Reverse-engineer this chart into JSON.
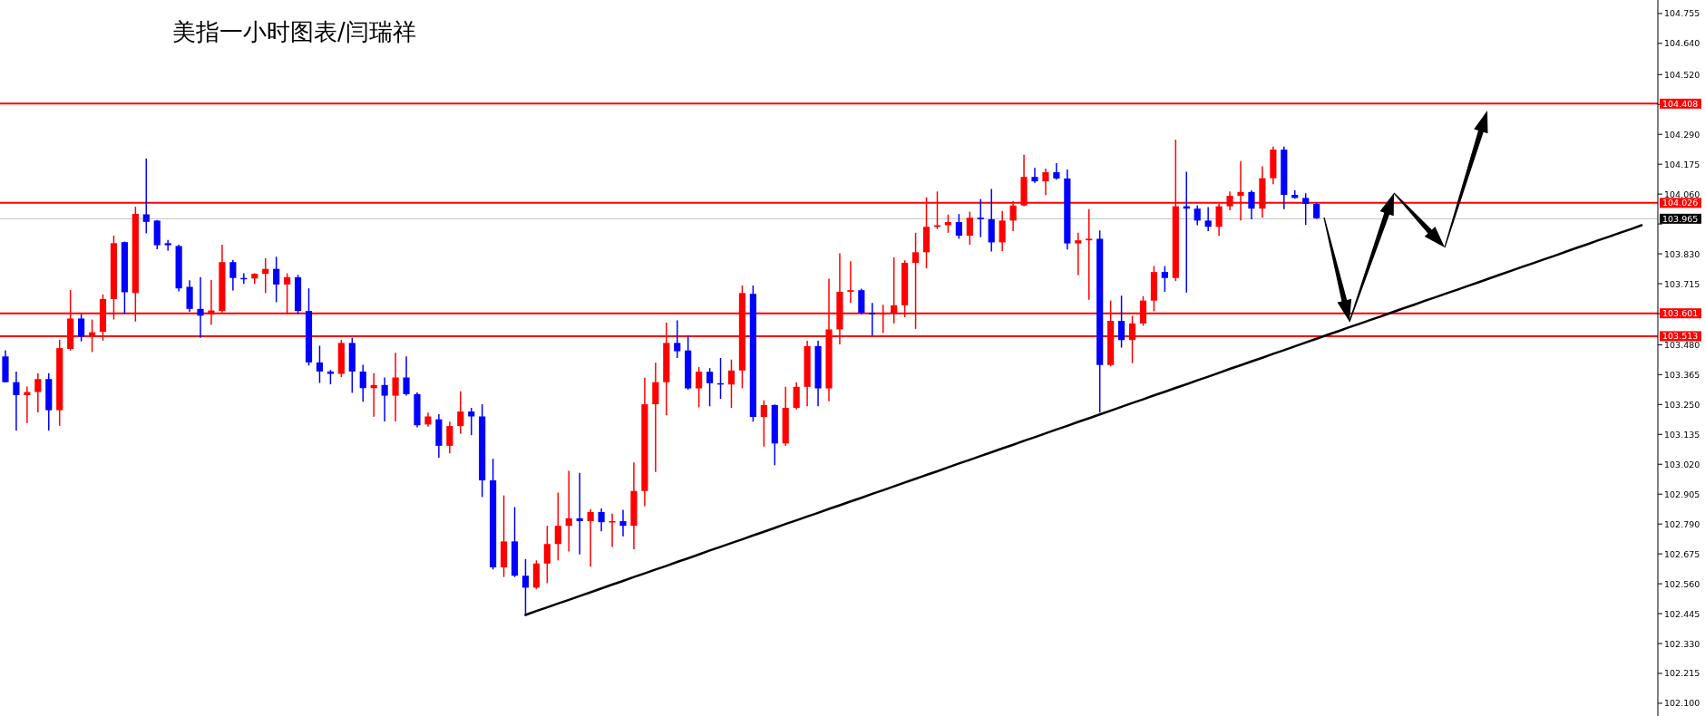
{
  "chart_data": {
    "type": "candlestick",
    "title": "美指一小时图表/闫瑞祥",
    "categories": [
      null,
      null,
      null,
      null,
      null,
      null,
      null,
      null,
      null,
      null,
      null,
      null,
      null,
      null,
      null,
      null,
      null,
      null,
      null,
      null,
      null,
      null,
      null,
      null,
      null,
      null,
      null,
      null,
      null,
      null,
      null,
      null,
      null,
      null,
      null,
      null,
      null,
      null,
      null,
      null,
      null,
      null,
      null,
      null,
      null,
      null,
      null,
      null,
      null,
      null,
      null,
      null,
      null,
      null,
      null,
      null,
      null,
      null,
      null,
      null,
      null,
      null,
      null,
      null,
      null,
      null,
      null,
      null,
      null,
      null,
      null,
      null,
      null,
      null,
      null,
      null,
      null,
      null,
      null,
      null,
      null,
      null,
      null,
      null,
      null,
      null,
      null,
      null,
      null,
      null,
      null,
      null,
      null,
      null,
      null,
      null,
      null,
      null,
      null,
      null,
      null,
      null,
      null,
      null,
      null,
      null,
      null,
      null,
      null,
      null,
      null,
      null,
      null,
      null,
      null,
      null,
      null,
      null,
      null,
      null,
      null,
      null,
      null,
      null,
      null,
      null,
      null,
      null,
      null,
      null,
      null,
      null,
      null,
      null,
      null,
      null,
      null,
      null,
      null,
      null,
      null,
      null,
      null,
      null,
      null,
      null,
      null,
      null,
      null,
      null,
      null,
      null,
      null
    ],
    "ohlc": [
      [
        103.435,
        103.459,
        103.336,
        103.336
      ],
      [
        103.336,
        103.377,
        103.15,
        103.286
      ],
      [
        103.286,
        103.319,
        103.179,
        103.298
      ],
      [
        103.298,
        103.371,
        103.22,
        103.348
      ],
      [
        103.348,
        103.371,
        103.15,
        103.228
      ],
      [
        103.228,
        103.499,
        103.168,
        103.467
      ],
      [
        103.464,
        103.691,
        103.458,
        103.581
      ],
      [
        103.581,
        103.598,
        103.493,
        103.511
      ],
      [
        103.511,
        103.577,
        103.452,
        103.528
      ],
      [
        103.53,
        103.674,
        103.496,
        103.656
      ],
      [
        103.656,
        103.9,
        103.577,
        103.871
      ],
      [
        103.875,
        103.877,
        103.598,
        103.682
      ],
      [
        103.679,
        104.011,
        103.569,
        103.984
      ],
      [
        103.982,
        104.197,
        103.909,
        103.953
      ],
      [
        103.958,
        103.96,
        103.848,
        103.863
      ],
      [
        103.871,
        103.883,
        103.842,
        103.863
      ],
      [
        103.86,
        103.865,
        103.685,
        103.697
      ],
      [
        103.703,
        103.728,
        103.607,
        103.618
      ],
      [
        103.618,
        103.74,
        103.507,
        103.592
      ],
      [
        103.598,
        103.729,
        103.557,
        103.612
      ],
      [
        103.61,
        103.865,
        103.604,
        103.798
      ],
      [
        103.798,
        103.807,
        103.689,
        103.737
      ],
      [
        103.737,
        103.755,
        103.714,
        103.735
      ],
      [
        103.735,
        103.755,
        103.714,
        103.753
      ],
      [
        103.753,
        103.813,
        103.679,
        103.772
      ],
      [
        103.772,
        103.819,
        103.644,
        103.712
      ],
      [
        103.712,
        103.755,
        103.598,
        103.74
      ],
      [
        103.74,
        103.749,
        103.598,
        103.61
      ],
      [
        103.61,
        103.697,
        103.4,
        103.412
      ],
      [
        103.412,
        103.476,
        103.333,
        103.377
      ],
      [
        103.377,
        103.383,
        103.328,
        103.368
      ],
      [
        103.368,
        103.499,
        103.356,
        103.487
      ],
      [
        103.487,
        103.507,
        103.295,
        103.377
      ],
      [
        103.377,
        103.403,
        103.261,
        103.313
      ],
      [
        103.313,
        103.371,
        103.203,
        103.325
      ],
      [
        103.325,
        103.354,
        103.185,
        103.284
      ],
      [
        103.284,
        103.449,
        103.185,
        103.354
      ],
      [
        103.354,
        103.435,
        103.284,
        103.29
      ],
      [
        103.29,
        103.296,
        103.162,
        103.17
      ],
      [
        103.173,
        103.219,
        103.165,
        103.204
      ],
      [
        103.193,
        103.213,
        103.045,
        103.091
      ],
      [
        103.091,
        103.184,
        103.062,
        103.167
      ],
      [
        103.167,
        103.301,
        103.138,
        103.223
      ],
      [
        103.223,
        103.237,
        103.132,
        103.204
      ],
      [
        103.204,
        103.251,
        102.894,
        102.958
      ],
      [
        102.958,
        103.041,
        102.615,
        102.623
      ],
      [
        102.623,
        102.9,
        102.586,
        102.723
      ],
      [
        102.723,
        102.855,
        102.586,
        102.591
      ],
      [
        102.591,
        102.655,
        102.44,
        102.545
      ],
      [
        102.545,
        102.65,
        102.54,
        102.638
      ],
      [
        102.638,
        102.783,
        102.562,
        102.713
      ],
      [
        102.713,
        102.911,
        102.65,
        102.783
      ],
      [
        102.783,
        102.995,
        102.684,
        102.812
      ],
      [
        102.812,
        102.987,
        102.673,
        102.801
      ],
      [
        102.801,
        102.847,
        102.626,
        102.836
      ],
      [
        102.836,
        102.85,
        102.762,
        102.797
      ],
      [
        102.797,
        102.83,
        102.702,
        102.801
      ],
      [
        102.801,
        102.845,
        102.743,
        102.783
      ],
      [
        102.783,
        103.027,
        102.693,
        102.917
      ],
      [
        102.917,
        103.353,
        102.859,
        103.251
      ],
      [
        103.251,
        103.411,
        102.99,
        103.336
      ],
      [
        103.336,
        103.565,
        103.208,
        103.487
      ],
      [
        103.487,
        103.574,
        103.429,
        103.455
      ],
      [
        103.458,
        103.516,
        103.307,
        103.312
      ],
      [
        103.312,
        103.394,
        103.239,
        103.376
      ],
      [
        103.376,
        103.39,
        103.243,
        103.332
      ],
      [
        103.332,
        103.429,
        103.272,
        103.327
      ],
      [
        103.327,
        103.423,
        103.237,
        103.381
      ],
      [
        103.381,
        103.708,
        103.312,
        103.679
      ],
      [
        103.676,
        103.708,
        103.184,
        103.202
      ],
      [
        103.202,
        103.266,
        103.088,
        103.248
      ],
      [
        103.248,
        103.25,
        103.016,
        103.1
      ],
      [
        103.1,
        103.318,
        103.091,
        103.237
      ],
      [
        103.237,
        103.336,
        103.231,
        103.318
      ],
      [
        103.318,
        103.495,
        103.243,
        103.475
      ],
      [
        103.475,
        103.495,
        103.243,
        103.312
      ],
      [
        103.312,
        103.734,
        103.262,
        103.539
      ],
      [
        103.539,
        103.832,
        103.481,
        103.684
      ],
      [
        103.684,
        103.801,
        103.641,
        103.69
      ],
      [
        103.69,
        103.696,
        103.597,
        103.603
      ],
      [
        103.603,
        103.641,
        103.516,
        103.597
      ],
      [
        103.597,
        103.634,
        103.525,
        103.603
      ],
      [
        103.603,
        103.816,
        103.562,
        103.632
      ],
      [
        103.632,
        103.805,
        103.586,
        103.795
      ],
      [
        103.795,
        103.911,
        103.541,
        103.836
      ],
      [
        103.836,
        104.048,
        103.774,
        103.934
      ],
      [
        103.934,
        104.07,
        103.925,
        103.94
      ],
      [
        103.94,
        103.981,
        103.911,
        103.952
      ],
      [
        103.952,
        103.983,
        103.888,
        103.9
      ],
      [
        103.9,
        103.992,
        103.865,
        103.969
      ],
      [
        103.969,
        104.041,
        103.894,
        103.963
      ],
      [
        103.963,
        104.08,
        103.839,
        103.874
      ],
      [
        103.874,
        103.995,
        103.841,
        103.958
      ],
      [
        103.958,
        104.033,
        103.917,
        104.016
      ],
      [
        104.016,
        104.211,
        104.013,
        104.126
      ],
      [
        104.126,
        104.161,
        104.103,
        104.109
      ],
      [
        104.109,
        104.158,
        104.056,
        104.144
      ],
      [
        104.144,
        104.179,
        104.115,
        104.12
      ],
      [
        104.12,
        104.155,
        103.847,
        103.87
      ],
      [
        103.87,
        103.911,
        103.748,
        103.882
      ],
      [
        103.882,
        104.002,
        103.653,
        103.888
      ],
      [
        103.888,
        103.92,
        103.219,
        103.402
      ],
      [
        103.402,
        103.65,
        103.397,
        103.572
      ],
      [
        103.572,
        103.669,
        103.469,
        103.498
      ],
      [
        103.498,
        103.591,
        103.409,
        103.562
      ],
      [
        103.562,
        103.667,
        103.553,
        103.65
      ],
      [
        103.65,
        103.783,
        103.609,
        103.76
      ],
      [
        103.76,
        103.783,
        103.684,
        103.737
      ],
      [
        103.737,
        104.269,
        103.725,
        104.013
      ],
      [
        104.013,
        104.146,
        103.681,
        104.004
      ],
      [
        104.004,
        104.016,
        103.94,
        103.958
      ],
      [
        103.958,
        104.01,
        103.917,
        103.934
      ],
      [
        103.934,
        104.022,
        103.899,
        104.013
      ],
      [
        104.013,
        104.07,
        103.998,
        104.053
      ],
      [
        104.053,
        104.187,
        103.958,
        104.068
      ],
      [
        104.068,
        104.074,
        103.963,
        104.004
      ],
      [
        104.004,
        104.167,
        103.97,
        104.121
      ],
      [
        104.121,
        104.243,
        104.098,
        104.231
      ],
      [
        104.231,
        104.243,
        104.002,
        104.057
      ],
      [
        104.057,
        104.074,
        104.042,
        104.045
      ],
      [
        104.045,
        104.063,
        103.941,
        104.022
      ],
      [
        104.022,
        104.028,
        103.964,
        103.967
      ],
      null,
      null,
      null,
      null,
      null,
      null,
      null,
      null,
      null,
      null,
      null,
      null,
      null,
      null,
      null,
      null,
      null,
      null,
      null,
      null,
      null,
      null,
      null,
      null,
      null,
      null,
      null,
      null,
      null,
      null,
      null
    ],
    "colors": [
      "#0000ff",
      "#0000ff",
      "#ff0000",
      "#ff0000",
      "#0000ff",
      "#ff0000",
      "#ff0000",
      "#0000ff",
      "#ff0000",
      "#ff0000",
      "#ff0000",
      "#0000ff",
      "#ff0000",
      "#0000ff",
      "#0000ff",
      "#0000ff",
      "#0000ff",
      "#0000ff",
      "#0000ff",
      "#ff0000",
      "#ff0000",
      "#0000ff",
      "#0000ff",
      "#ff0000",
      "#ff0000",
      "#0000ff",
      "#ff0000",
      "#0000ff",
      "#0000ff",
      "#0000ff",
      "#0000ff",
      "#ff0000",
      "#0000ff",
      "#0000ff",
      "#ff0000",
      "#0000ff",
      "#ff0000",
      "#0000ff",
      "#0000ff",
      "#ff0000",
      "#0000ff",
      "#ff0000",
      "#ff0000",
      "#0000ff",
      "#0000ff",
      "#0000ff",
      "#ff0000",
      "#0000ff",
      "#0000ff",
      "#ff0000",
      "#ff0000",
      "#ff0000",
      "#ff0000",
      "#0000ff",
      "#ff0000",
      "#0000ff",
      "#ff0000",
      "#0000ff",
      "#ff0000",
      "#ff0000",
      "#ff0000",
      "#ff0000",
      "#0000ff",
      "#0000ff",
      "#ff0000",
      "#0000ff",
      "#0000ff",
      "#ff0000",
      "#ff0000",
      "#0000ff",
      "#ff0000",
      "#0000ff",
      "#ff0000",
      "#ff0000",
      "#ff0000",
      "#0000ff",
      "#ff0000",
      "#ff0000",
      "#ff0000",
      "#0000ff",
      "#0000ff",
      "#ff0000",
      "#ff0000",
      "#ff0000",
      "#ff0000",
      "#ff0000",
      "#ff0000",
      "#ff0000",
      "#0000ff",
      "#ff0000",
      "#0000ff",
      "#0000ff",
      "#ff0000",
      "#ff0000",
      "#ff0000",
      "#0000ff",
      "#ff0000",
      "#0000ff",
      "#0000ff",
      "#ff0000",
      "#ff0000",
      "#0000ff",
      "#ff0000",
      "#0000ff",
      "#ff0000",
      "#ff0000",
      "#ff0000",
      "#0000ff",
      "#ff0000",
      "#0000ff",
      "#0000ff",
      "#0000ff",
      "#ff0000",
      "#ff0000",
      "#ff0000",
      "#0000ff",
      "#ff0000",
      "#ff0000",
      "#0000ff",
      "#0000ff",
      "#0000ff",
      "#0000ff",
      null,
      null,
      null,
      null,
      null,
      null,
      null,
      null,
      null,
      null,
      null,
      null,
      null,
      null,
      null,
      null,
      null,
      null,
      null,
      null,
      null,
      null,
      null,
      null,
      null,
      null,
      null,
      null,
      null,
      null,
      null
    ],
    "series": [
      {
        "type": "line",
        "color": "#000000",
        "values": [
          null,
          null,
          null,
          null,
          null,
          null,
          null,
          null,
          null,
          null,
          null,
          null,
          null,
          null,
          null,
          null,
          null,
          null,
          null,
          null,
          null,
          null,
          null,
          null,
          null,
          null,
          null,
          null,
          null,
          null,
          null,
          null,
          null,
          null,
          null,
          null,
          null,
          null,
          null,
          null,
          null,
          null,
          null,
          null,
          null,
          null,
          null,
          null,
          102.44,
          102.455,
          102.469,
          102.484,
          102.498,
          102.513,
          102.527,
          102.542,
          102.557,
          102.571,
          102.586,
          102.6,
          102.615,
          102.629,
          102.644,
          102.658,
          102.673,
          102.688,
          102.702,
          102.717,
          102.731,
          102.746,
          102.76,
          102.775,
          102.79,
          102.804,
          102.819,
          102.833,
          102.848,
          102.862,
          102.877,
          102.891,
          102.906,
          102.92,
          102.935,
          102.95,
          102.964,
          102.979,
          102.993,
          103.008,
          103.023,
          103.037,
          103.052,
          103.066,
          103.081,
          103.095,
          103.11,
          103.124,
          103.139,
          103.154,
          103.168,
          103.183,
          103.197,
          103.212,
          103.226,
          103.241,
          103.256,
          103.27,
          103.285,
          103.299,
          103.314,
          103.328,
          103.343,
          103.357,
          103.372,
          103.387,
          103.401,
          103.416,
          103.43,
          103.445,
          103.459,
          103.474,
          103.489,
          103.503,
          103.518,
          103.532,
          103.547,
          103.561,
          103.576,
          103.59,
          103.605,
          103.62,
          103.634,
          103.649,
          103.663,
          103.678,
          103.692,
          103.707,
          103.721,
          103.736,
          103.751,
          103.765,
          103.78,
          103.794,
          103.809,
          103.823,
          103.838,
          103.853,
          103.867,
          103.882,
          103.896,
          103.911,
          103.925,
          103.94,
          null
        ]
      }
    ],
    "ref_lines": [
      {
        "axis": "y",
        "value": 104.408,
        "label": "104.408",
        "color": "#ff0000"
      },
      {
        "axis": "y",
        "value": 104.026,
        "label": "104.026",
        "color": "#ff0000"
      },
      {
        "axis": "y",
        "value": 103.965,
        "label": "103.965",
        "color": "#c0c0c0"
      },
      {
        "axis": "y",
        "value": 103.601,
        "label": "103.601",
        "color": "#ff0000"
      },
      {
        "axis": "y",
        "value": 103.513,
        "label": "103.513",
        "color": "#ff0000"
      }
    ],
    "ylim": [
      102.051,
      104.807
    ],
    "yticks": [
      104.755,
      {
        "value": 104.64,
        "label": "104.640"
      },
      {
        "value": 104.52,
        "label": "104.520"
      },
      {
        "value": 104.405,
        "label": null
      },
      {
        "value": 104.29,
        "label": "104.290"
      },
      104.175,
      {
        "value": 104.06,
        "label": "104.060"
      },
      {
        "value": 103.945,
        "label": null
      },
      {
        "value": 103.83,
        "label": "103.830"
      },
      103.715,
      {
        "value": 103.6,
        "label": null
      },
      {
        "value": 103.48,
        "label": "103.480"
      },
      103.365,
      {
        "value": 103.25,
        "label": "103.250"
      },
      103.135,
      {
        "value": 103.02,
        "label": "103.020"
      },
      102.905,
      {
        "value": 102.79,
        "label": "102.790"
      },
      102.675,
      {
        "value": 102.56,
        "label": "102.560"
      },
      102.445,
      {
        "value": 102.33,
        "label": "102.330"
      },
      102.215,
      {
        "value": 102.1,
        "label": "102.100"
      }
    ],
    "tick_labels": "y"
  }
}
